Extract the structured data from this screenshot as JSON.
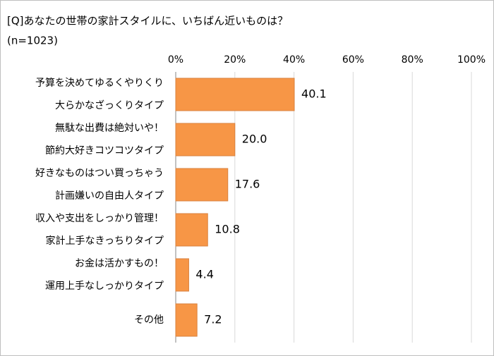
{
  "chart_data": {
    "type": "bar",
    "orientation": "horizontal",
    "title": "[Q]あなたの世帯の家計スタイルに、いちばん近いものは？",
    "subtitle": "(n=1023)",
    "categories": [
      [
        "予算を決めてゆるくやりくり",
        "大らかなざっくりタイプ"
      ],
      [
        "無駄な出費は絶対いや！",
        "節約大好きコツコツタイプ"
      ],
      [
        "好きなものはつい買っちゃう",
        "計画嫌いの自由人タイプ"
      ],
      [
        "収入や支出をしっかり管理！",
        "家計上手なきっちりタイプ"
      ],
      [
        "お金は活かすもの！",
        "運用上手なしっかりタイプ"
      ],
      [
        "その他"
      ]
    ],
    "values": [
      40.1,
      20.0,
      17.6,
      10.8,
      4.4,
      7.2
    ],
    "value_labels": [
      "40.1",
      "20.0",
      "17.6",
      "10.8",
      "4.4",
      "7.2"
    ],
    "color": "#f79646",
    "xlim": [
      0,
      100
    ],
    "xticks": [
      {
        "value": 0,
        "label": "0%"
      },
      {
        "value": 20,
        "label": "20%"
      },
      {
        "value": 40,
        "label": "40%"
      },
      {
        "value": 60,
        "label": "60%"
      },
      {
        "value": 80,
        "label": "80%"
      },
      {
        "value": 100,
        "label": "100%"
      }
    ],
    "grid": true
  }
}
